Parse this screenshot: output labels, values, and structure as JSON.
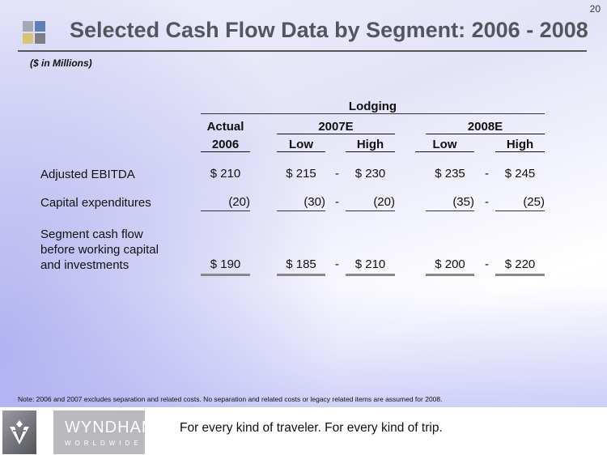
{
  "page_number": "20",
  "title": "Selected Cash Flow Data by Segment: 2006 - 2008",
  "units": "($ in Millions)",
  "logo_colors": [
    "#a8a8b4",
    "#5f7fb5",
    "#d9c37a",
    "#7e7e86"
  ],
  "table": {
    "segment": "Lodging",
    "col_groups": {
      "actual": "Actual",
      "y2007": "2007E",
      "y2008": "2008E"
    },
    "col_headers": [
      "2006",
      "Low",
      "High",
      "Low",
      "High"
    ],
    "separator": "-",
    "rows": [
      {
        "label": "Adjusted EBITDA",
        "values": [
          "$ 210",
          "$ 215",
          "$ 230",
          "$ 235",
          "$ 245"
        ]
      },
      {
        "label": "Capital expenditures",
        "values": [
          "(20)",
          "(30)",
          "(20)",
          "(35)",
          "(25)"
        ]
      },
      {
        "label_lines": [
          "Segment cash flow",
          "before working capital",
          "and investments"
        ],
        "values": [
          "$ 190",
          "$ 185",
          "$ 210",
          "$ 200",
          "$ 220"
        ]
      }
    ]
  },
  "note": "Note: 2006 and 2007 excludes separation and related costs.  No separation and related costs or legacy related items are assumed for 2008.",
  "footer": {
    "brand": "WYNDHAM",
    "brand_sub": "WORLDWIDE",
    "tagline": "For every kind of traveler. For every kind of trip."
  }
}
